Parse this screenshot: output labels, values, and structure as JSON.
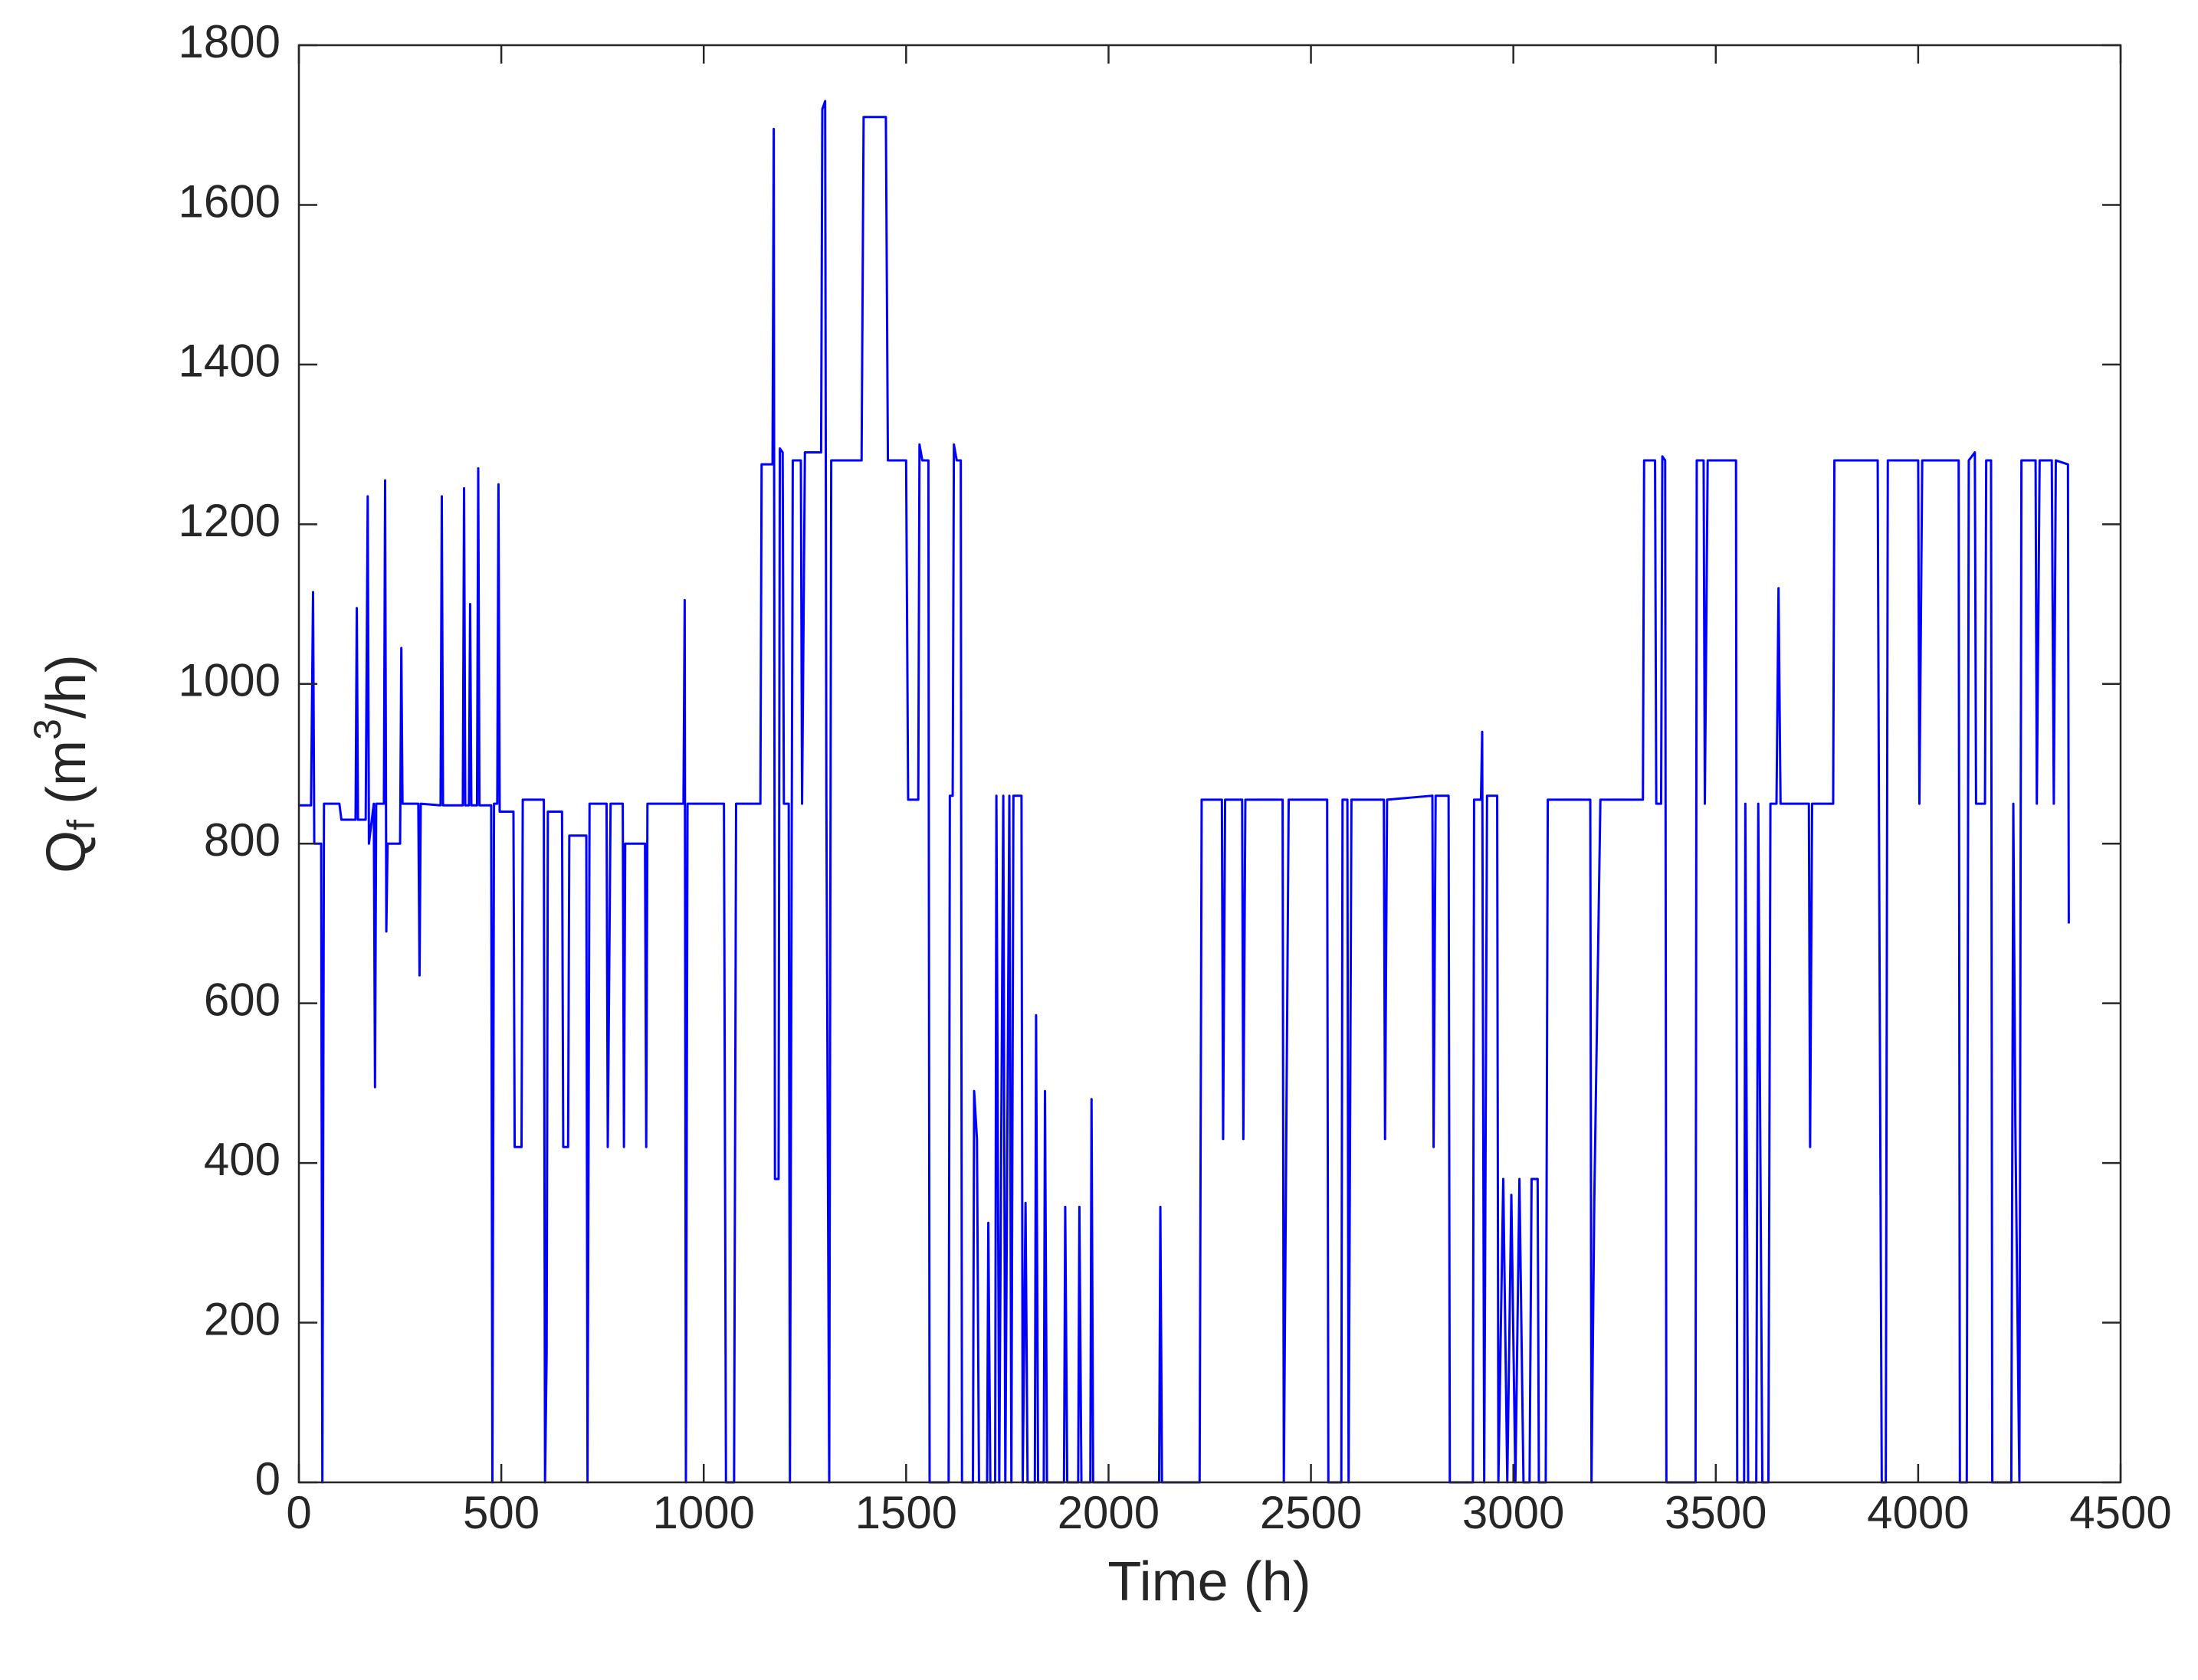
{
  "chart_data": {
    "type": "line",
    "xlabel": "Time (h)",
    "ylabel": {
      "base": "Q",
      "sub": "f",
      "pre": " (m",
      "sup": "3",
      "post": "/h)"
    },
    "color": "#0000ff",
    "xlim": [
      0,
      4500
    ],
    "xticks": [
      0,
      500,
      1000,
      1500,
      2000,
      2500,
      3000,
      3500,
      4000,
      4500
    ],
    "ylim": [
      0,
      1800
    ],
    "yticks": [
      0,
      200,
      400,
      600,
      800,
      1000,
      1200,
      1400,
      1600,
      1800
    ],
    "x": [
      0,
      30,
      35,
      38,
      55,
      58,
      62,
      100,
      105,
      140,
      143,
      146,
      165,
      170,
      173,
      185,
      188,
      191,
      210,
      213,
      216,
      219,
      250,
      253,
      256,
      295,
      298,
      301,
      350,
      353,
      356,
      405,
      408,
      411,
      420,
      423,
      426,
      440,
      443,
      446,
      475,
      478,
      482,
      490,
      493,
      496,
      530,
      533,
      550,
      553,
      605,
      608,
      612,
      615,
      650,
      653,
      665,
      668,
      710,
      713,
      718,
      760,
      763,
      770,
      800,
      803,
      806,
      855,
      858,
      861,
      950,
      953,
      956,
      960,
      1050,
      1055,
      1075,
      1080,
      1140,
      1143,
      1170,
      1173,
      1176,
      1185,
      1188,
      1195,
      1198,
      1210,
      1213,
      1220,
      1240,
      1243,
      1250,
      1290,
      1293,
      1300,
      1303,
      1310,
      1315,
      1390,
      1395,
      1450,
      1455,
      1500,
      1505,
      1530,
      1533,
      1540,
      1555,
      1558,
      1605,
      1608,
      1615,
      1618,
      1625,
      1635,
      1638,
      1665,
      1668,
      1675,
      1680,
      1700,
      1703,
      1708,
      1720,
      1723,
      1730,
      1740,
      1745,
      1755,
      1760,
      1765,
      1785,
      1788,
      1795,
      1800,
      1818,
      1821,
      1826,
      1840,
      1843,
      1848,
      1890,
      1893,
      1898,
      1925,
      1928,
      1933,
      1955,
      1958,
      1962,
      2125,
      2128,
      2132,
      2225,
      2230,
      2280,
      2283,
      2288,
      2330,
      2333,
      2338,
      2430,
      2433,
      2445,
      2540,
      2543,
      2575,
      2578,
      2590,
      2593,
      2600,
      2680,
      2683,
      2688,
      2800,
      2803,
      2808,
      2840,
      2843,
      2900,
      2903,
      2920,
      2923,
      2928,
      2935,
      2960,
      2963,
      2975,
      2985,
      2995,
      3005,
      3015,
      3025,
      3040,
      3045,
      3060,
      3063,
      3080,
      3085,
      3190,
      3193,
      3200,
      3215,
      3320,
      3323,
      3350,
      3353,
      3365,
      3368,
      3375,
      3378,
      3450,
      3453,
      3470,
      3473,
      3480,
      3550,
      3553,
      3570,
      3573,
      3580,
      3600,
      3605,
      3615,
      3630,
      3635,
      3650,
      3655,
      3660,
      3730,
      3733,
      3738,
      3790,
      3793,
      3900,
      3903,
      3910,
      3920,
      3925,
      4000,
      4003,
      4010,
      4100,
      4103,
      4120,
      4125,
      4140,
      4143,
      4165,
      4168,
      4180,
      4183,
      4230,
      4235,
      4240,
      4250,
      4255,
      4290,
      4293,
      4300,
      4330,
      4335,
      4340,
      4370,
      4372
    ],
    "values": [
      848,
      848,
      1115,
      800,
      800,
      0,
      850,
      850,
      830,
      830,
      1095,
      830,
      830,
      1235,
      800,
      850,
      495,
      850,
      850,
      1255,
      690,
      800,
      800,
      1045,
      850,
      850,
      635,
      850,
      848,
      1235,
      848,
      848,
      1245,
      848,
      848,
      1100,
      848,
      848,
      1270,
      848,
      848,
      0,
      850,
      850,
      1250,
      840,
      840,
      420,
      420,
      855,
      855,
      0,
      160,
      840,
      840,
      420,
      420,
      810,
      810,
      0,
      850,
      850,
      420,
      850,
      850,
      420,
      800,
      800,
      420,
      850,
      850,
      1105,
      0,
      850,
      850,
      0,
      0,
      850,
      850,
      1275,
      1275,
      1695,
      380,
      380,
      1295,
      1290,
      850,
      850,
      0,
      1280,
      1280,
      850,
      1290,
      1290,
      1720,
      1730,
      860,
      0,
      1280,
      1280,
      1710,
      1710,
      1280,
      1280,
      855,
      855,
      1300,
      1280,
      1280,
      0,
      0,
      860,
      860,
      1300,
      1280,
      1280,
      0,
      0,
      490,
      430,
      0,
      0,
      325,
      0,
      0,
      860,
      0,
      860,
      0,
      860,
      0,
      860,
      860,
      0,
      350,
      0,
      0,
      585,
      0,
      0,
      490,
      0,
      0,
      345,
      0,
      0,
      345,
      0,
      0,
      480,
      0,
      0,
      345,
      0,
      0,
      855,
      855,
      430,
      855,
      855,
      430,
      855,
      855,
      0,
      855,
      855,
      0,
      0,
      855,
      855,
      0,
      855,
      855,
      430,
      855,
      860,
      420,
      860,
      860,
      0,
      0,
      855,
      855,
      940,
      0,
      860,
      860,
      0,
      380,
      0,
      360,
      0,
      380,
      0,
      0,
      380,
      380,
      0,
      0,
      855,
      855,
      0,
      355,
      855,
      855,
      1280,
      1280,
      850,
      850,
      1285,
      1280,
      0,
      0,
      1280,
      1280,
      850,
      1280,
      1280,
      0,
      0,
      850,
      0,
      0,
      850,
      0,
      0,
      850,
      850,
      1120,
      850,
      850,
      420,
      850,
      850,
      1280,
      1280,
      850,
      0,
      0,
      1280,
      1280,
      850,
      1280,
      1280,
      0,
      0,
      1280,
      1290,
      850,
      850,
      1280,
      1280,
      0,
      0,
      850,
      450,
      0,
      1280,
      1280,
      850,
      1280,
      1280,
      850,
      1280,
      1275,
      700
    ]
  }
}
